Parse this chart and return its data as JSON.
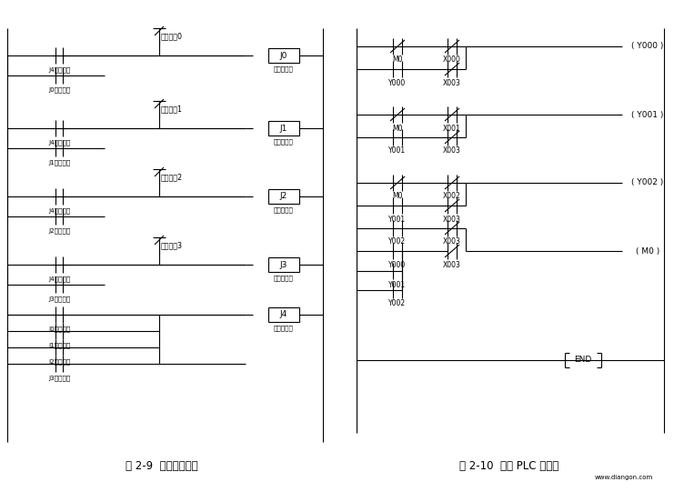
{
  "fig_width": 7.41,
  "fig_height": 5.41,
  "bg_color": "#ffffff",
  "line_color": "#000000",
  "text_color": "#000000",
  "font_size_small": 5.5,
  "font_size_med": 6.5,
  "font_size_caption": 8.5,
  "caption_left": "图 2-9  继电器原理图",
  "caption_right": "图 2-10  等效 PLC 梯形图",
  "watermark": "www.diangon.com"
}
